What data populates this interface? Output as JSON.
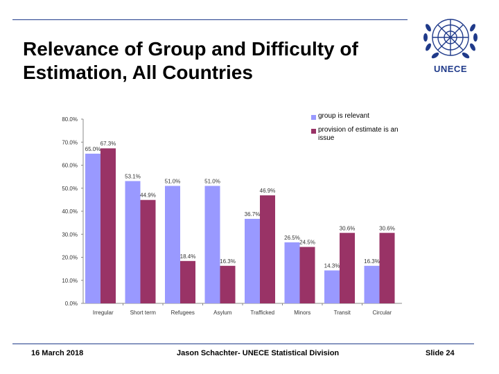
{
  "slide": {
    "title": "Relevance of Group and Difficulty of Estimation, All Countries",
    "logo_text": "UNECE"
  },
  "footer": {
    "date": "16 March 2018",
    "author": "Jason Schachter- UNECE Statistical Division",
    "slide_number": "Slide 24"
  },
  "colors": {
    "series_1": "#9999ff",
    "series_2": "#993366",
    "rule": "#1f3a8a"
  },
  "chart_data": {
    "type": "bar",
    "categories": [
      "Irregular",
      "Short term",
      "Refugees",
      "Asylum",
      "Trafficked",
      "Minors",
      "Transit",
      "Circular"
    ],
    "series": [
      {
        "name": "group is relevant",
        "values": [
          65.0,
          53.1,
          51.0,
          51.0,
          36.7,
          26.5,
          14.3,
          16.3
        ],
        "labels": [
          "65.0%",
          "53.1%",
          "51.0%",
          "51.0%",
          "36.7%",
          "26.5%",
          "14.3%",
          "16.3%"
        ]
      },
      {
        "name": "provision of estimate is an issue",
        "values": [
          67.3,
          44.9,
          18.4,
          16.3,
          46.9,
          24.5,
          30.6,
          30.6
        ],
        "labels": [
          "67.3%",
          "44.9%",
          "18.4%",
          "16.3%",
          "46.9%",
          "24.5%",
          "30.6%",
          "30.6%"
        ]
      }
    ],
    "yticks": [
      "0.0%",
      "10.0%",
      "20.0%",
      "30.0%",
      "40.0%",
      "50.0%",
      "60.0%",
      "70.0%",
      "80.0%"
    ],
    "ylim": [
      0,
      80
    ],
    "grid": false,
    "legend_position": "top-right"
  }
}
